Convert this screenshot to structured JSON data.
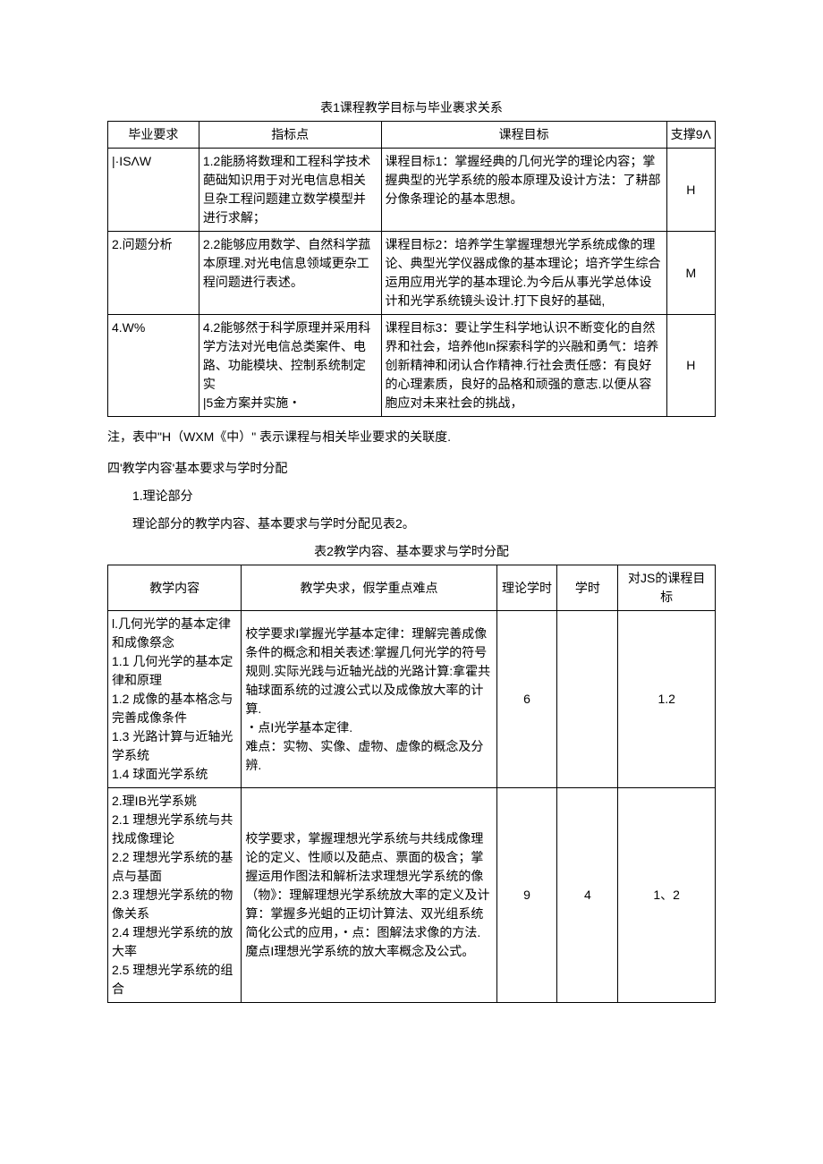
{
  "table1": {
    "caption": "表1课程教学目标与毕业裹求关系",
    "headers": [
      "毕业要求",
      "指标点",
      "课程目标",
      "支撑9Λ"
    ],
    "rows": [
      {
        "c1": "|·ISΛW",
        "c2": "1.2能肠将数理和工程科学技术葩础知识用于对光电信息相关旦杂工程问题建立数学模型并进行求解；",
        "c3": "课程目标1：掌握经典的几何光学的理论内容；掌握典型的光学系统的般本原理及设计方法：了耕部分像条理论的基本思想。",
        "c4": "H"
      },
      {
        "c1": "2.问题分析",
        "c2": "2.2能够应用数学、自然科学菰本原理.对光电信息领域更杂工程问题进行表述。",
        "c3": "课程目标2：培养学生掌握理想光学系统成像的理论、典型光学仪器成像的基本理论；培齐学生综合运用应用光学的基本理论.为今后从事光学总体设计和光学系统镜头设计.打下良好的基础,",
        "c4": "M"
      },
      {
        "c1": "4.W%",
        "c2": "4.2能够然于科学原理并采用科学方法对光电信总类案件、电路、功能模块、控制系统制定实\n|5金方案并实施・",
        "c3": "课程目标3：要让学生科学地认识不断变化的自然界和社会，培养他In探索科学的兴融和勇气：培养创新精神和闭认合作精神.行社会责任感：有良好的心理素质，良好的品格和顽强的意志.以便从容胞应对未来社会的挑战，",
        "c4": "H"
      }
    ],
    "note": "注，表中\"H（WXM《中）\" 表示课程与相关毕业要求的关联度."
  },
  "section4": {
    "title": "四'教学内容'基本要求与学时分配",
    "sub1_num": "1.理论部分",
    "sub1_text": "理论部分的教学内容、基本要求与学时分配见表2。"
  },
  "table2": {
    "caption": "表2教学内容、基本要求与学时分配",
    "headers": [
      "教学内容",
      "教学央求，假学重点难点",
      "理论学时",
      "学时",
      "对JS的课程目标"
    ],
    "rows": [
      {
        "c1": "l.几何光学的基本定律和成像祭念\n1.1 几何光学的基本定律和原理\n1.2 成像的基本格念与完善成像条件\n1.3 光路计算与近轴光学系统\n1.4 球面光学系统",
        "c2": "校学要求I掌握光学基本定律：理解完善成像条件的概念和相关表述:掌握几何光学的符号规则.实际光践与近轴光战的光路计算:拿霍共轴球面系统的过渡公式以及成像放大率的计算.\n・点I光学基本定律.\n难点：实物、实像、虚物、虚像的概念及分辨.",
        "c3": "6",
        "c4": "",
        "c5": "1.2"
      },
      {
        "c1": "2.理IB光学系姚\n2.1 理想光学系统与共找成像理论\n2.2 理想光学系统的基点与基面\n2.3 理想光学系统的物像关系\n2.4 理想光学系统的放大率\n2.5 理想光学系统的组合",
        "c2": "校学要求，掌握理想光学系统与共线成像理论的定义、性顺以及葩点、票面的极含；掌握运用作图法和解析法求理想光学系统的像（物》：理解理想光学系统放大率的定义及计算：掌握多光蛆的正切计算法、双光组系统简化公式的应用，・点：图解法求像的方法.\n魔点I理想光学系统的放大率概念及公式。",
        "c3": "9",
        "c4": "4",
        "c5": "1、2"
      }
    ]
  }
}
